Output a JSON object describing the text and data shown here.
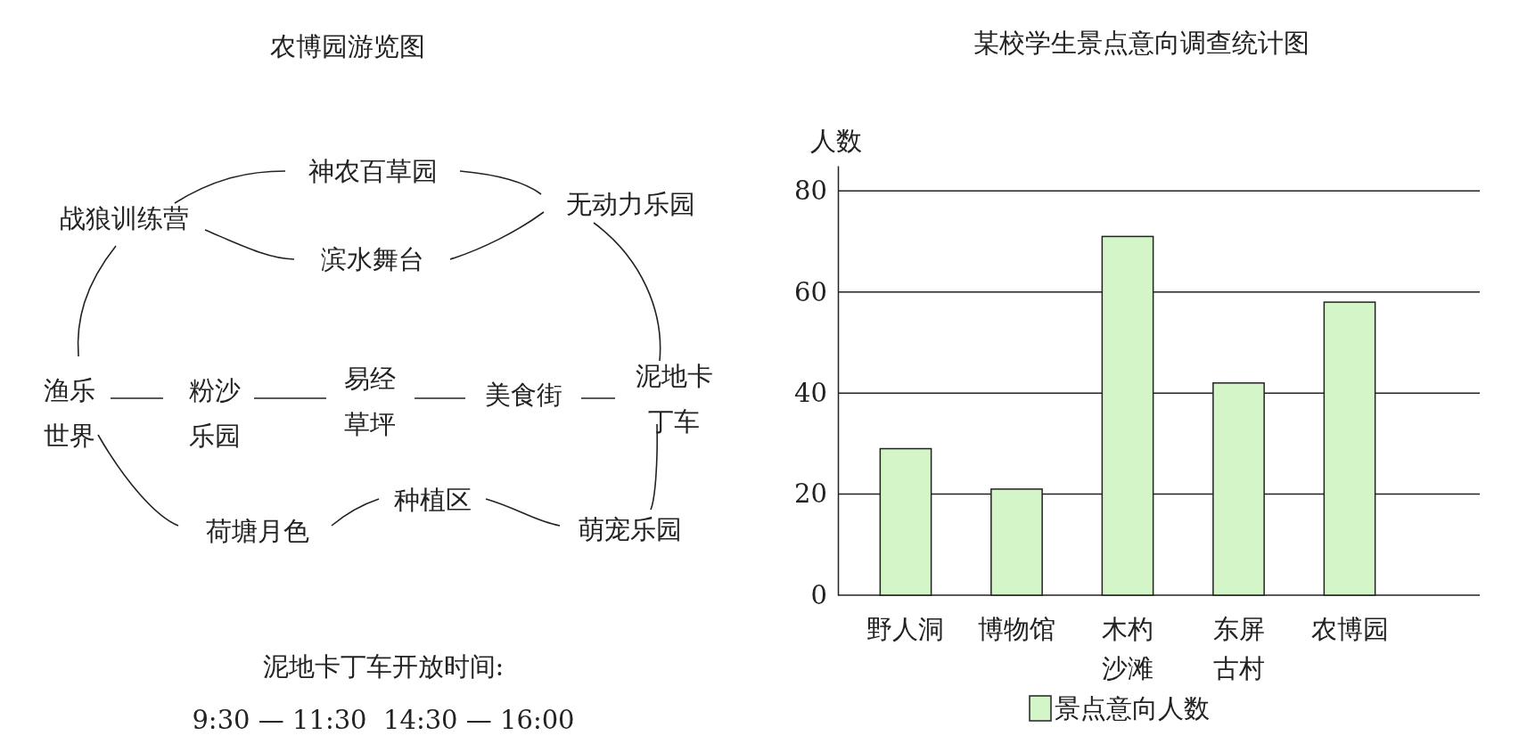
{
  "chart_data": [
    {
      "type": "other",
      "title": "农博园游览图",
      "annotations": [
        "神农百草园",
        "战狼训练营",
        "无动力乐园",
        "滨水舞台",
        "渔乐世界",
        "粉沙乐园",
        "易经草坪",
        "美食街",
        "泥地卡丁车",
        "种植区",
        "荷塘月色",
        "萌宠乐园",
        "泥地卡丁车开放时间:",
        "9:30 — 11:30  14:30 — 16:00"
      ]
    },
    {
      "type": "bar",
      "title": "某校学生景点意向调查统计图",
      "ylabel": "人数",
      "categories": [
        "野人洞",
        "博物馆",
        "木杓沙滩",
        "东屏古村",
        "农博园"
      ],
      "series": [
        {
          "name": "景点意向人数",
          "color": "#d4f5c8",
          "values": [
            29,
            21,
            71,
            42,
            58
          ]
        }
      ],
      "ylim": [
        0,
        85
      ],
      "yticks": [
        0,
        20,
        40,
        60,
        80
      ],
      "grid": "y",
      "legend": "bottom"
    }
  ]
}
